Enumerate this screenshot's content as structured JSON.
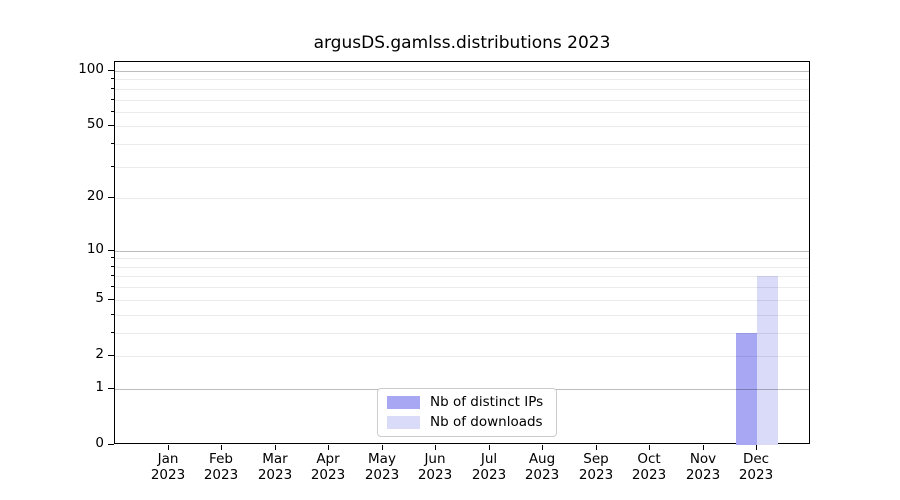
{
  "chart_data": {
    "type": "bar",
    "title": "argusDS.gamlss.distributions 2023",
    "x_categories": [
      "Jan",
      "Feb",
      "Mar",
      "Apr",
      "May",
      "Jun",
      "Jul",
      "Aug",
      "Sep",
      "Oct",
      "Nov",
      "Dec"
    ],
    "x_year": "2023",
    "series": [
      {
        "name": "Nb of distinct IPs",
        "color": "#a7a7f4",
        "values": [
          0,
          0,
          0,
          0,
          0,
          0,
          0,
          0,
          0,
          0,
          0,
          3
        ]
      },
      {
        "name": "Nb of downloads",
        "color": "#dadaf9",
        "values": [
          0,
          0,
          0,
          0,
          0,
          0,
          0,
          0,
          0,
          0,
          0,
          7
        ]
      }
    ],
    "y_axis": {
      "scale": "log1p",
      "tick_values": [
        0,
        1,
        2,
        5,
        10,
        20,
        50,
        100
      ],
      "ylim": [
        0,
        105
      ],
      "grid_major_values": [
        1,
        10,
        100
      ],
      "grid_minor_values": [
        2,
        3,
        4,
        5,
        6,
        7,
        8,
        9,
        20,
        30,
        40,
        50,
        60,
        70,
        80,
        90
      ]
    },
    "legend_position": "lower center",
    "grid": "horizontal",
    "colors": {
      "grid_major": "rgba(0,0,0,0.26)",
      "grid_minor": "rgba(0,0,0,0.08)",
      "axis": "#000000",
      "legend_border": "#cccccc",
      "background": "#ffffff"
    }
  }
}
